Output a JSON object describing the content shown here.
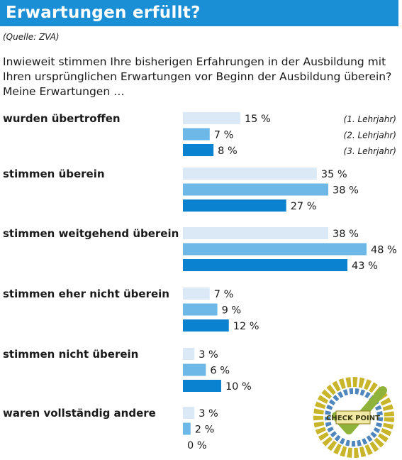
{
  "title": "Erwartungen erfüllt?",
  "source": "(Quelle: ZVA)",
  "question_lines": [
    "Inwieweit stimmen Ihre bisherigen Erfahrungen in der Ausbildung mit",
    "Ihren ursprünglichen Erwartungen vor Beginn der Ausbildung überein?",
    "Meine Erwartungen …"
  ],
  "logo": {
    "icon": "check-point-word-cloud-logo",
    "text": "CHECK POINT"
  },
  "chart_data": {
    "type": "bar",
    "orientation": "horizontal",
    "categories": [
      "wurden übertroffen",
      "stimmen überein",
      "stimmen weitgehend überein",
      "stimmen eher nicht überein",
      "stimmen nicht überein",
      "waren vollständig andere"
    ],
    "series": [
      {
        "name": "(1. Lehrjahr)",
        "values": [
          15,
          35,
          38,
          7,
          3,
          3
        ],
        "color": "#dbe9f7"
      },
      {
        "name": "(2. Lehrjahr)",
        "values": [
          7,
          38,
          48,
          9,
          6,
          2
        ],
        "color": "#6eb8e8"
      },
      {
        "name": "(3. Lehrjahr)",
        "values": [
          8,
          27,
          43,
          12,
          10,
          0
        ],
        "color": "#0a82cf"
      }
    ],
    "value_suffix": " %",
    "xlim": [
      0,
      48
    ],
    "legend_position": "right of first group"
  }
}
